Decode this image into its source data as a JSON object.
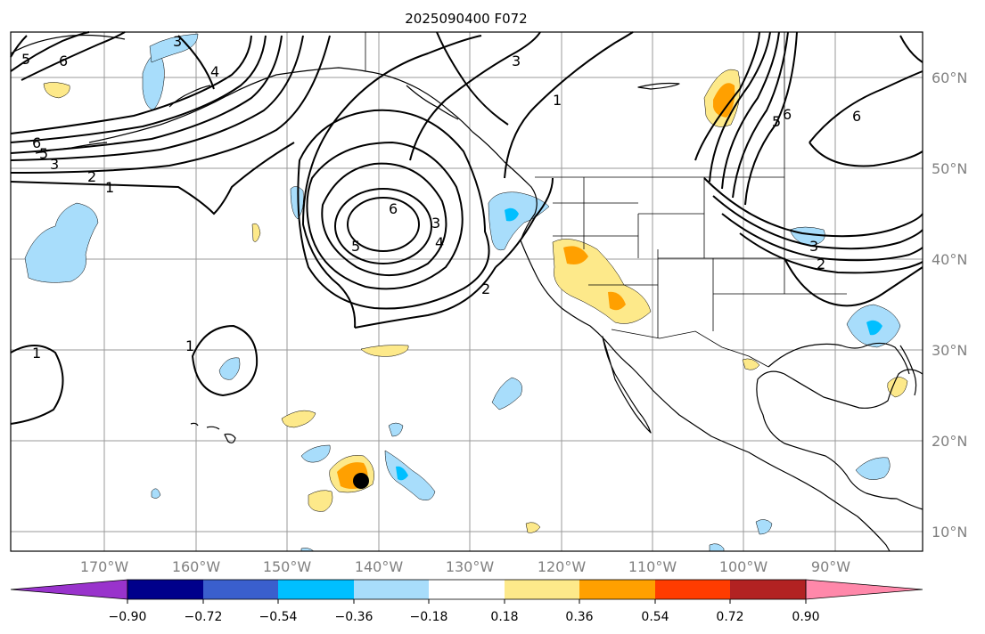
{
  "title": "2025090400 F072",
  "map": {
    "lon_labels": [
      "170°W",
      "160°W",
      "150°W",
      "140°W",
      "130°W",
      "120°W",
      "110°W",
      "100°W",
      "90°W"
    ],
    "lat_labels": [
      "60°N",
      "50°N",
      "40°N",
      "30°N",
      "20°N",
      "10°N"
    ],
    "contour_labels": [
      "1",
      "2",
      "3",
      "4",
      "5",
      "6"
    ]
  },
  "colorbar": {
    "tick_labels": [
      "−0.90",
      "−0.72",
      "−0.54",
      "−0.36",
      "−0.18",
      "0.18",
      "0.36",
      "0.54",
      "0.72",
      "0.90"
    ],
    "colors": [
      "#9933cc",
      "#00008b",
      "#3a5fcd",
      "#00bfff",
      "#a8ddfb",
      "#ffffff",
      "#fde98a",
      "#ffa000",
      "#ff3c00",
      "#b22222",
      "#ff88aa"
    ]
  }
}
